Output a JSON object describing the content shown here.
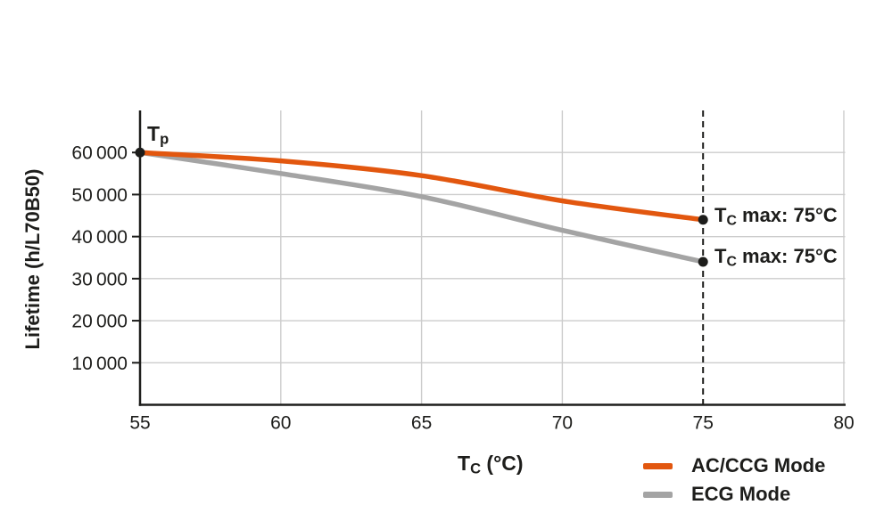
{
  "colors": {
    "accent_orange": "#e2570f",
    "series_gray": "#a4a4a4",
    "grid": "#cccccc",
    "axis": "#1d1d1b",
    "text": "#1d1d1b",
    "background": "#ffffff"
  },
  "chart_data": {
    "type": "line",
    "title": "",
    "ylabel": "Lifetime (h/L70B50)",
    "xlabel_parts": {
      "base": "T",
      "sub": "C",
      "rest": " (°C)"
    },
    "x": [
      55,
      60,
      65,
      70,
      75
    ],
    "xlim": [
      55,
      80
    ],
    "ylim": [
      0,
      70000
    ],
    "xticks": [
      55,
      60,
      65,
      70,
      75,
      80
    ],
    "yticks": [
      10000,
      20000,
      30000,
      40000,
      50000,
      60000
    ],
    "ytick_labels": [
      "10 000",
      "20 000",
      "30 000",
      "40 000",
      "50 000",
      "60 000"
    ],
    "grid": true,
    "legend_position": "bottom-right",
    "dashed_vline_x": 75,
    "start_marker": {
      "x": 55,
      "y": 60000
    },
    "series": [
      {
        "name": "AC/CCG Mode",
        "color": "#e2570f",
        "values": [
          60000,
          58000,
          54500,
          48500,
          44000
        ]
      },
      {
        "name": "ECG Mode",
        "color": "#a4a4a4",
        "values": [
          60000,
          55000,
          49500,
          41500,
          34000
        ]
      }
    ]
  },
  "annotations": {
    "tp": {
      "base": "T",
      "sub": "p",
      "rest": ""
    },
    "tc_max_ac": {
      "base": "T",
      "sub": "C",
      "rest": " max: 75°C"
    },
    "tc_max_ecg": {
      "base": "T",
      "sub": "C",
      "rest": " max: 75°C"
    }
  }
}
